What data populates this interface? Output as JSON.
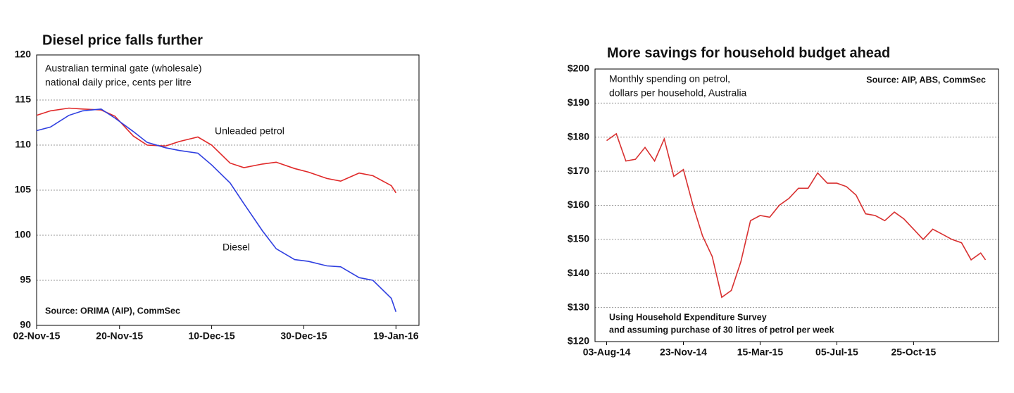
{
  "chart_data": [
    {
      "type": "line",
      "title": "Diesel price falls further",
      "subtitle": [
        "Australian terminal gate (wholesale)",
        "national daily price, cents per litre"
      ],
      "source": "Source: ORIMA (AIP), CommSec",
      "x": [
        "2015-11-02",
        "2015-11-05",
        "2015-11-09",
        "2015-11-12",
        "2015-11-16",
        "2015-11-19",
        "2015-11-23",
        "2015-11-26",
        "2015-11-30",
        "2015-12-03",
        "2015-12-07",
        "2015-12-10",
        "2015-12-14",
        "2015-12-17",
        "2015-12-21",
        "2015-12-24",
        "2015-12-28",
        "2015-12-31",
        "2016-01-04",
        "2016-01-07",
        "2016-01-11",
        "2016-01-14",
        "2016-01-18",
        "2016-01-19"
      ],
      "series": [
        {
          "name": "Unleaded petrol",
          "color": "#e02828",
          "values": [
            113.3,
            113.8,
            114.1,
            114.0,
            113.9,
            113.2,
            111.0,
            110.0,
            109.9,
            110.4,
            110.9,
            110.0,
            108.0,
            107.5,
            107.9,
            108.1,
            107.4,
            107.0,
            106.3,
            106.0,
            106.9,
            106.6,
            105.5,
            104.7
          ]
        },
        {
          "name": "Diesel",
          "color": "#2f3fe0",
          "values": [
            111.6,
            112.0,
            113.3,
            113.8,
            114.0,
            113.0,
            111.5,
            110.3,
            109.7,
            109.4,
            109.1,
            107.8,
            105.8,
            103.5,
            100.5,
            98.5,
            97.3,
            97.1,
            96.6,
            96.5,
            95.3,
            95.0,
            93.0,
            91.5
          ]
        }
      ],
      "xlim": [
        "2015-11-02",
        "2016-01-24"
      ],
      "xticks": [
        {
          "value": "2015-11-02",
          "label": "02-Nov-15"
        },
        {
          "value": "2015-11-20",
          "label": "20-Nov-15"
        },
        {
          "value": "2015-12-10",
          "label": "10-Dec-15"
        },
        {
          "value": "2015-12-30",
          "label": "30-Dec-15"
        },
        {
          "value": "2016-01-19",
          "label": "19-Jan-16"
        }
      ],
      "ylim": [
        90,
        120
      ],
      "yticks": [
        90,
        95,
        100,
        105,
        110,
        115,
        120
      ],
      "grid": true
    },
    {
      "type": "line",
      "title": "More savings for household budget ahead",
      "subtitle": [
        "Monthly spending on petrol,",
        "dollars per household, Australia"
      ],
      "source": "Source: AIP, ABS, CommSec",
      "note": [
        "Using Household Expenditure Survey",
        "and assuming purchase of 30 litres of petrol per week"
      ],
      "x": [
        "2014-08-03",
        "2014-08-17",
        "2014-08-31",
        "2014-09-14",
        "2014-09-28",
        "2014-10-12",
        "2014-10-26",
        "2014-11-09",
        "2014-11-23",
        "2014-12-07",
        "2014-12-21",
        "2015-01-04",
        "2015-01-18",
        "2015-02-01",
        "2015-02-15",
        "2015-03-01",
        "2015-03-15",
        "2015-03-29",
        "2015-04-12",
        "2015-04-26",
        "2015-05-10",
        "2015-05-24",
        "2015-06-07",
        "2015-06-21",
        "2015-07-05",
        "2015-07-19",
        "2015-08-02",
        "2015-08-16",
        "2015-08-30",
        "2015-09-13",
        "2015-09-27",
        "2015-10-11",
        "2015-10-25",
        "2015-11-08",
        "2015-11-22",
        "2015-12-06",
        "2015-12-20",
        "2016-01-03",
        "2016-01-17",
        "2016-01-31",
        "2016-02-07"
      ],
      "series": [
        {
          "name": "Monthly spending on petrol",
          "color": "#d83030",
          "values": [
            179,
            181,
            173,
            173.5,
            177,
            173,
            179.5,
            168.5,
            170.5,
            160,
            151,
            145,
            133,
            135,
            143.5,
            155.5,
            157,
            156.5,
            160,
            162,
            165,
            165,
            169.5,
            166.5,
            166.5,
            165.5,
            163,
            157.5,
            157,
            155.5,
            158,
            156,
            153,
            150,
            153,
            151.5,
            150,
            149,
            144,
            146,
            144
          ]
        }
      ],
      "xlim": [
        "2014-07-17",
        "2016-02-26"
      ],
      "xticks": [
        {
          "value": "2014-08-03",
          "label": "03-Aug-14"
        },
        {
          "value": "2014-11-23",
          "label": "23-Nov-14"
        },
        {
          "value": "2015-03-15",
          "label": "15-Mar-15"
        },
        {
          "value": "2015-07-05",
          "label": "05-Jul-15"
        },
        {
          "value": "2015-10-25",
          "label": "25-Oct-15"
        }
      ],
      "ylim": [
        120,
        200
      ],
      "yticks": [
        {
          "value": 120,
          "label": "$120"
        },
        {
          "value": 130,
          "label": "$130"
        },
        {
          "value": 140,
          "label": "$140"
        },
        {
          "value": 150,
          "label": "$150"
        },
        {
          "value": 160,
          "label": "$160"
        },
        {
          "value": 170,
          "label": "$170"
        },
        {
          "value": 180,
          "label": "$180"
        },
        {
          "value": 190,
          "label": "$190"
        },
        {
          "value": 200,
          "label": "$200"
        }
      ],
      "grid": true
    }
  ]
}
